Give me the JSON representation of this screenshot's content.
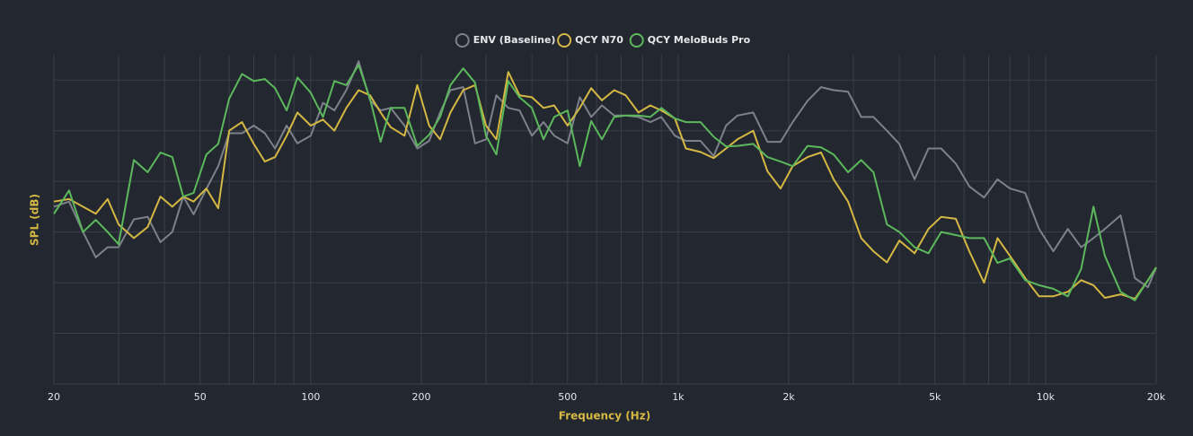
{
  "chart_data": {
    "type": "line",
    "x_label": "Frequency (Hz)",
    "y_label": "SPL (dB)",
    "xscale": "log",
    "xlim": [
      20,
      20000
    ],
    "xticks": [
      20,
      50,
      100,
      200,
      500,
      {
        "value": 1000,
        "label": "1k"
      },
      {
        "value": 2000,
        "label": "2k"
      },
      {
        "value": 5000,
        "label": "5k"
      },
      {
        "value": 10000,
        "label": "10k"
      },
      {
        "value": 20000,
        "label": "20k"
      }
    ],
    "xgrid": [
      30,
      40,
      60,
      70,
      80,
      90,
      300,
      400,
      600,
      700,
      800,
      900,
      3000,
      4000,
      6000,
      7000,
      8000,
      9000
    ],
    "ylim": [
      0,
      65
    ],
    "ygrid": [
      0,
      10,
      20,
      30,
      40,
      50,
      60
    ],
    "grid": true,
    "legend": "top",
    "x": [
      20,
      22,
      24,
      26,
      28,
      30,
      33,
      36,
      39,
      42,
      45,
      48,
      52,
      56,
      60,
      65,
      70,
      75,
      80,
      86,
      92,
      100,
      108,
      116,
      125,
      135,
      145,
      155,
      165,
      180,
      195,
      210,
      225,
      240,
      260,
      280,
      300,
      320,
      345,
      370,
      400,
      430,
      460,
      500,
      540,
      580,
      620,
      670,
      720,
      780,
      840,
      900,
      980,
      1050,
      1150,
      1250,
      1350,
      1450,
      1600,
      1750,
      1900,
      2050,
      2250,
      2450,
      2650,
      2900,
      3150,
      3400,
      3700,
      4000,
      4400,
      4800,
      5200,
      5700,
      6200,
      6800,
      7400,
      8000,
      8800,
      9600,
      10500,
      11500,
      12500,
      13500,
      14500,
      16000,
      17500,
      19000,
      20000
    ],
    "series": [
      {
        "name": "ENV (Baseline)",
        "color": "#7d818b",
        "values": [
          35,
          36,
          30,
          25,
          27,
          27,
          32.5,
          33,
          28,
          30,
          37,
          33.5,
          38.5,
          43,
          49.5,
          49.5,
          51,
          49.5,
          46.5,
          51,
          47.5,
          49,
          55.5,
          54,
          58,
          63.7,
          56,
          54,
          54.5,
          51,
          46.5,
          48,
          53.6,
          58,
          58.6,
          47.5,
          48.3,
          57,
          54.5,
          54,
          49,
          51.7,
          49,
          47.5,
          56.6,
          52.7,
          55,
          53,
          53,
          52.7,
          51.7,
          52.7,
          49,
          48,
          48,
          45,
          51,
          53,
          53.6,
          47.8,
          47.8,
          51.7,
          55.9,
          58.6,
          58,
          57.7,
          52.7,
          52.7,
          50,
          47.4,
          40.4,
          46.5,
          46.5,
          43.5,
          39,
          36.8,
          40.4,
          38.6,
          37.7,
          30.6,
          26.2,
          30.6,
          27,
          28.8,
          30.6,
          33.3,
          20.9,
          19.1,
          23
        ]
      },
      {
        "name": "QCY N70",
        "color": "#d4b843",
        "values": [
          36,
          36.5,
          35,
          33.6,
          36.5,
          31.5,
          28.8,
          31,
          37,
          35,
          37,
          36,
          38.6,
          34.7,
          50,
          51.7,
          47.4,
          43.9,
          44.8,
          49,
          53.6,
          51,
          52.2,
          50,
          54.5,
          58,
          57,
          53.6,
          50.7,
          49,
          59,
          51,
          48.3,
          53.6,
          58,
          59,
          51,
          48.3,
          61.6,
          57,
          56.6,
          54.5,
          55,
          51,
          54.5,
          58.4,
          56,
          58,
          57,
          53.6,
          55,
          54,
          52.4,
          46.5,
          45.8,
          44.6,
          46.5,
          48.3,
          50,
          42,
          38.6,
          43,
          44.8,
          45.7,
          40.4,
          36,
          28.8,
          26.2,
          24,
          28.3,
          25.8,
          30.6,
          33,
          32.6,
          26.2,
          20,
          28.8,
          25.3,
          20.9,
          17.3,
          17.3,
          18.2,
          20.5,
          19.5,
          17,
          17.7,
          16.8,
          20.5,
          23
        ]
      },
      {
        "name": "QCY MeloBuds Pro",
        "color": "#5cb85c",
        "values": [
          33.6,
          38.2,
          30,
          32.4,
          30,
          27.6,
          44.2,
          41.8,
          45.7,
          44.8,
          37,
          37.7,
          45.3,
          47.4,
          56.3,
          61.2,
          59.8,
          60.2,
          58.4,
          54,
          60.5,
          57.5,
          52.7,
          59.8,
          59,
          63,
          56.3,
          47.8,
          54.5,
          54.5,
          47,
          49.2,
          52.7,
          59,
          62.3,
          59.5,
          49,
          45.3,
          59.8,
          56.6,
          54.5,
          48.3,
          52.7,
          54,
          43,
          51.9,
          48.3,
          52.7,
          53,
          53,
          52.7,
          54.5,
          52.4,
          51.7,
          51.7,
          48.8,
          46.9,
          47,
          47.4,
          44.8,
          43.9,
          43,
          47,
          46.7,
          45.3,
          41.8,
          44.2,
          41.8,
          31.5,
          30,
          27,
          25.8,
          30,
          29.4,
          28.8,
          28.8,
          23.9,
          24.8,
          20.5,
          19.5,
          18.8,
          17.3,
          22.7,
          35,
          25.3,
          18.2,
          16.5,
          20.5,
          23
        ]
      }
    ]
  }
}
